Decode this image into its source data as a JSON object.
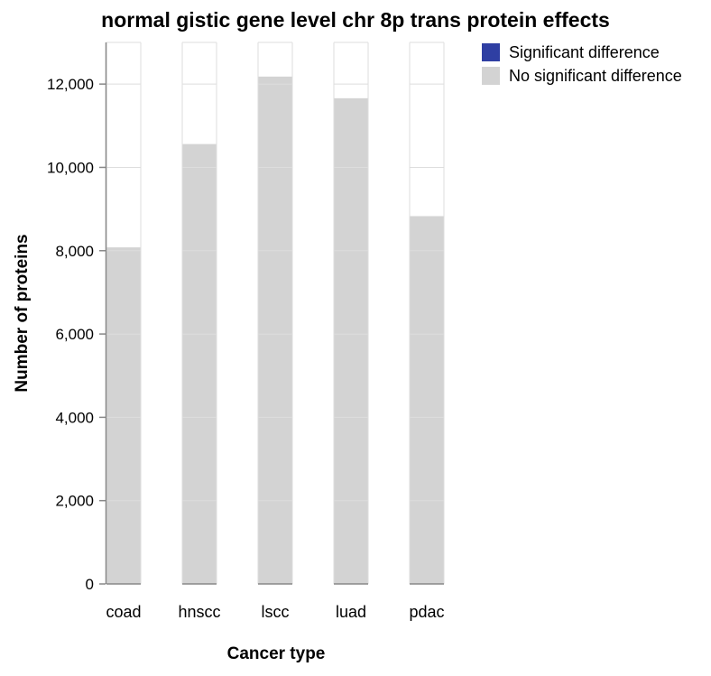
{
  "chart_data": {
    "type": "bar",
    "stacked": true,
    "title": "normal gistic gene level chr 8p trans protein effects",
    "xlabel": "Cancer type",
    "ylabel": "Number of proteins",
    "ylim": [
      0,
      13000
    ],
    "yticks": [
      0,
      2000,
      4000,
      6000,
      8000,
      10000,
      12000
    ],
    "ytick_labels": [
      "0",
      "2,000",
      "4,000",
      "6,000",
      "8,000",
      "10,000",
      "12,000"
    ],
    "categories": [
      "coad",
      "hnscc",
      "lscc",
      "luad",
      "pdac"
    ],
    "grid": true,
    "legend_position": "top-right",
    "series": [
      {
        "name": "Significant difference",
        "color": "#2f3fa3",
        "values": [
          0,
          0,
          0,
          0,
          0
        ]
      },
      {
        "name": "No significant difference",
        "color": "#d3d3d3",
        "values": [
          8080,
          10560,
          12180,
          11660,
          8830
        ]
      }
    ],
    "legend": [
      {
        "label": "Significant difference",
        "color": "#2f3fa3"
      },
      {
        "label": "No significant difference",
        "color": "#d3d3d3"
      }
    ]
  }
}
